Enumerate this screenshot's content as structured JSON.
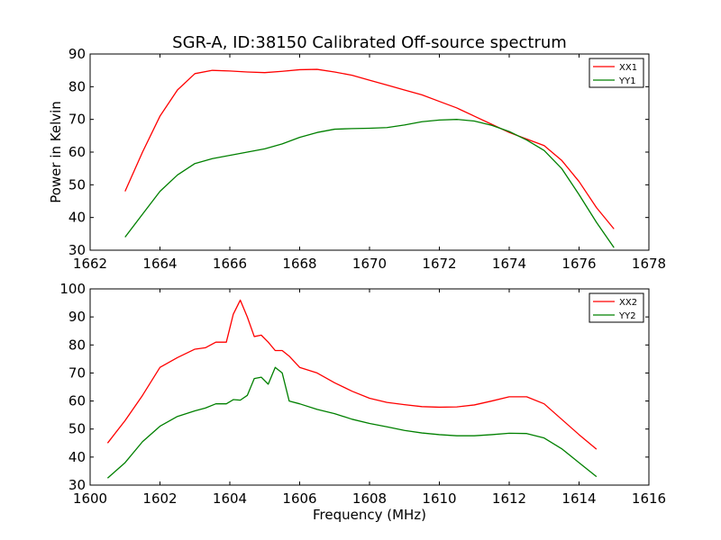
{
  "figure_title": "SGR-A, ID:38150 Calibrated Off-source spectrum",
  "chart_data": [
    {
      "type": "line",
      "title": "SGR-A, ID:38150 Calibrated Off-source spectrum",
      "xlabel": "",
      "ylabel": "Power in Kelvin",
      "xlim": [
        1662,
        1678
      ],
      "ylim": [
        30,
        90
      ],
      "xticks": [
        1662,
        1664,
        1666,
        1668,
        1670,
        1672,
        1674,
        1676,
        1678
      ],
      "yticks": [
        30,
        40,
        50,
        60,
        70,
        80,
        90
      ],
      "grid": false,
      "legend": "top-right",
      "series": [
        {
          "name": "XX1",
          "color": "#ff0000",
          "x": [
            1663.0,
            1663.5,
            1664.0,
            1664.5,
            1665.0,
            1665.5,
            1666.0,
            1666.5,
            1667.0,
            1667.5,
            1668.0,
            1668.5,
            1669.0,
            1669.5,
            1670.0,
            1670.5,
            1671.0,
            1671.5,
            1672.0,
            1672.5,
            1673.0,
            1673.5,
            1674.0,
            1674.5,
            1675.0,
            1675.5,
            1676.0,
            1676.5,
            1677.0
          ],
          "y": [
            48,
            60,
            71,
            79,
            84,
            85,
            84.8,
            84.5,
            84.3,
            84.7,
            85.2,
            85.3,
            84.5,
            83.5,
            82,
            80.5,
            79,
            77.5,
            75.5,
            73.5,
            71,
            68.5,
            66,
            64,
            62,
            57.5,
            51,
            43,
            36.5
          ]
        },
        {
          "name": "YY1",
          "color": "#008000",
          "x": [
            1663.0,
            1663.5,
            1664.0,
            1664.5,
            1665.0,
            1665.5,
            1666.0,
            1666.5,
            1667.0,
            1667.5,
            1668.0,
            1668.5,
            1669.0,
            1669.5,
            1670.0,
            1670.5,
            1671.0,
            1671.5,
            1672.0,
            1672.5,
            1673.0,
            1673.5,
            1674.0,
            1674.5,
            1675.0,
            1675.5,
            1676.0,
            1676.5,
            1677.0
          ],
          "y": [
            34,
            41,
            48,
            53,
            56.5,
            58,
            59,
            60,
            61,
            62.5,
            64.5,
            66,
            67,
            67.2,
            67.3,
            67.5,
            68.3,
            69.3,
            69.8,
            70,
            69.5,
            68.2,
            66.3,
            63.7,
            60.5,
            55,
            47,
            38.5,
            30.8
          ]
        }
      ]
    },
    {
      "type": "line",
      "title": "",
      "xlabel": "Frequency (MHz)",
      "ylabel": "",
      "xlim": [
        1600,
        1616
      ],
      "ylim": [
        30,
        100
      ],
      "xticks": [
        1600,
        1602,
        1604,
        1606,
        1608,
        1610,
        1612,
        1614,
        1616
      ],
      "yticks": [
        30,
        40,
        50,
        60,
        70,
        80,
        90,
        100
      ],
      "grid": false,
      "legend": "top-right",
      "series": [
        {
          "name": "XX2",
          "color": "#ff0000",
          "x": [
            1600.5,
            1601.0,
            1601.5,
            1602.0,
            1602.5,
            1603.0,
            1603.3,
            1603.6,
            1603.9,
            1604.1,
            1604.3,
            1604.5,
            1604.7,
            1604.9,
            1605.1,
            1605.3,
            1605.5,
            1605.7,
            1606.0,
            1606.5,
            1607.0,
            1607.5,
            1608.0,
            1608.5,
            1609.0,
            1609.5,
            1610.0,
            1610.5,
            1611.0,
            1611.5,
            1612.0,
            1612.5,
            1613.0,
            1613.5,
            1614.0,
            1614.5
          ],
          "y": [
            45,
            53,
            62,
            72,
            75.5,
            78.5,
            79,
            81,
            81,
            91,
            96,
            90,
            83,
            83.5,
            81,
            78,
            78,
            76,
            72,
            70,
            66.5,
            63.5,
            61,
            59.5,
            58.7,
            58,
            57.8,
            57.9,
            58.6,
            60,
            61.5,
            61.5,
            59,
            53.5,
            48,
            42.8
          ]
        },
        {
          "name": "YY2",
          "color": "#008000",
          "x": [
            1600.5,
            1601.0,
            1601.5,
            1602.0,
            1602.5,
            1603.0,
            1603.3,
            1603.6,
            1603.9,
            1604.1,
            1604.3,
            1604.5,
            1604.7,
            1604.9,
            1605.1,
            1605.3,
            1605.5,
            1605.7,
            1606.0,
            1606.5,
            1607.0,
            1607.5,
            1608.0,
            1608.5,
            1609.0,
            1609.5,
            1610.0,
            1610.5,
            1611.0,
            1611.5,
            1612.0,
            1612.5,
            1613.0,
            1613.5,
            1614.0,
            1614.5
          ],
          "y": [
            32.5,
            38,
            45.5,
            51,
            54.5,
            56.5,
            57.5,
            59,
            59,
            60.5,
            60.3,
            62,
            68,
            68.5,
            66,
            72,
            70,
            60,
            59,
            57,
            55.5,
            53.5,
            52,
            50.8,
            49.5,
            48.6,
            48,
            47.6,
            47.6,
            48,
            48.5,
            48.4,
            46.8,
            43,
            38,
            33
          ]
        }
      ]
    }
  ]
}
